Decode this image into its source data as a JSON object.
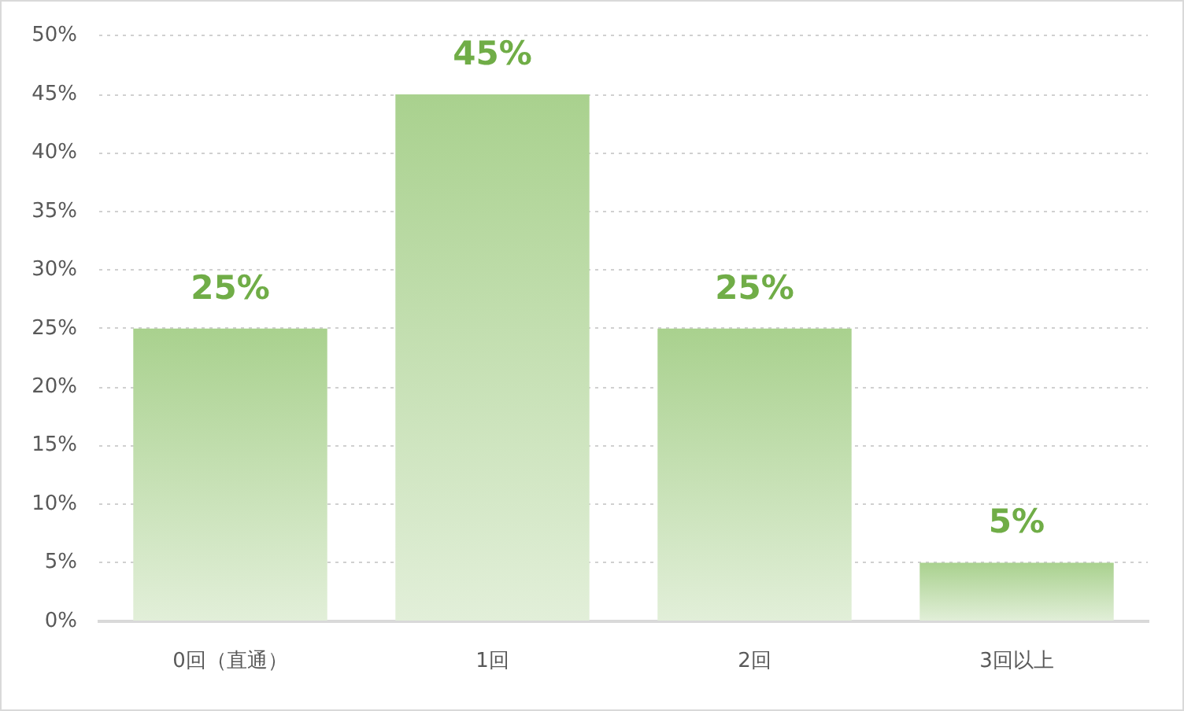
{
  "chart_data": {
    "type": "bar",
    "categories": [
      "0回（直通）",
      "1回",
      "2回",
      "3回以上"
    ],
    "values": [
      25,
      45,
      25,
      5
    ],
    "color": "#a9d18e",
    "value_labels": [
      "25%",
      "45%",
      "25%",
      "5%"
    ],
    "ylim": [
      0,
      50
    ],
    "yticks": [
      {
        "value": 0,
        "label": "0%"
      },
      {
        "value": 5,
        "label": "5%"
      },
      {
        "value": 10,
        "label": "10%"
      },
      {
        "value": 15,
        "label": "15%"
      },
      {
        "value": 20,
        "label": "20%"
      },
      {
        "value": 25,
        "label": "25%"
      },
      {
        "value": 30,
        "label": "30%"
      },
      {
        "value": 35,
        "label": "35%"
      },
      {
        "value": 40,
        "label": "40%"
      },
      {
        "value": 45,
        "label": "45%"
      },
      {
        "value": 50,
        "label": "50%"
      }
    ],
    "grid": "y",
    "legend": false
  }
}
